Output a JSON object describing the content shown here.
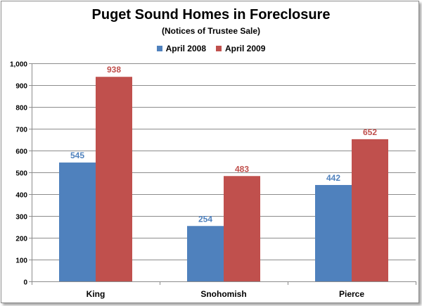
{
  "chart_data": {
    "type": "bar",
    "title": "Puget Sound Homes in Foreclosure",
    "subtitle": "(Notices of Trustee Sale)",
    "xlabel": "",
    "ylabel": "",
    "categories": [
      "King",
      "Snohomish",
      "Pierce"
    ],
    "series": [
      {
        "name": "April 2008",
        "values": [
          545,
          254,
          442
        ],
        "color": "#4f81bd",
        "label_color": "#4f81bd"
      },
      {
        "name": "April 2009",
        "values": [
          938,
          483,
          652
        ],
        "color": "#c0504d",
        "label_color": "#c0504d"
      }
    ],
    "ylim": [
      0,
      1000
    ],
    "yticks": [
      0,
      100,
      200,
      300,
      400,
      500,
      600,
      700,
      800,
      900,
      1000
    ],
    "ytick_labels": [
      "0",
      "100",
      "200",
      "300",
      "400",
      "500",
      "600",
      "700",
      "800",
      "900",
      "1,000"
    ],
    "grid": true,
    "legend_position": "top-center",
    "data_labels": true
  }
}
